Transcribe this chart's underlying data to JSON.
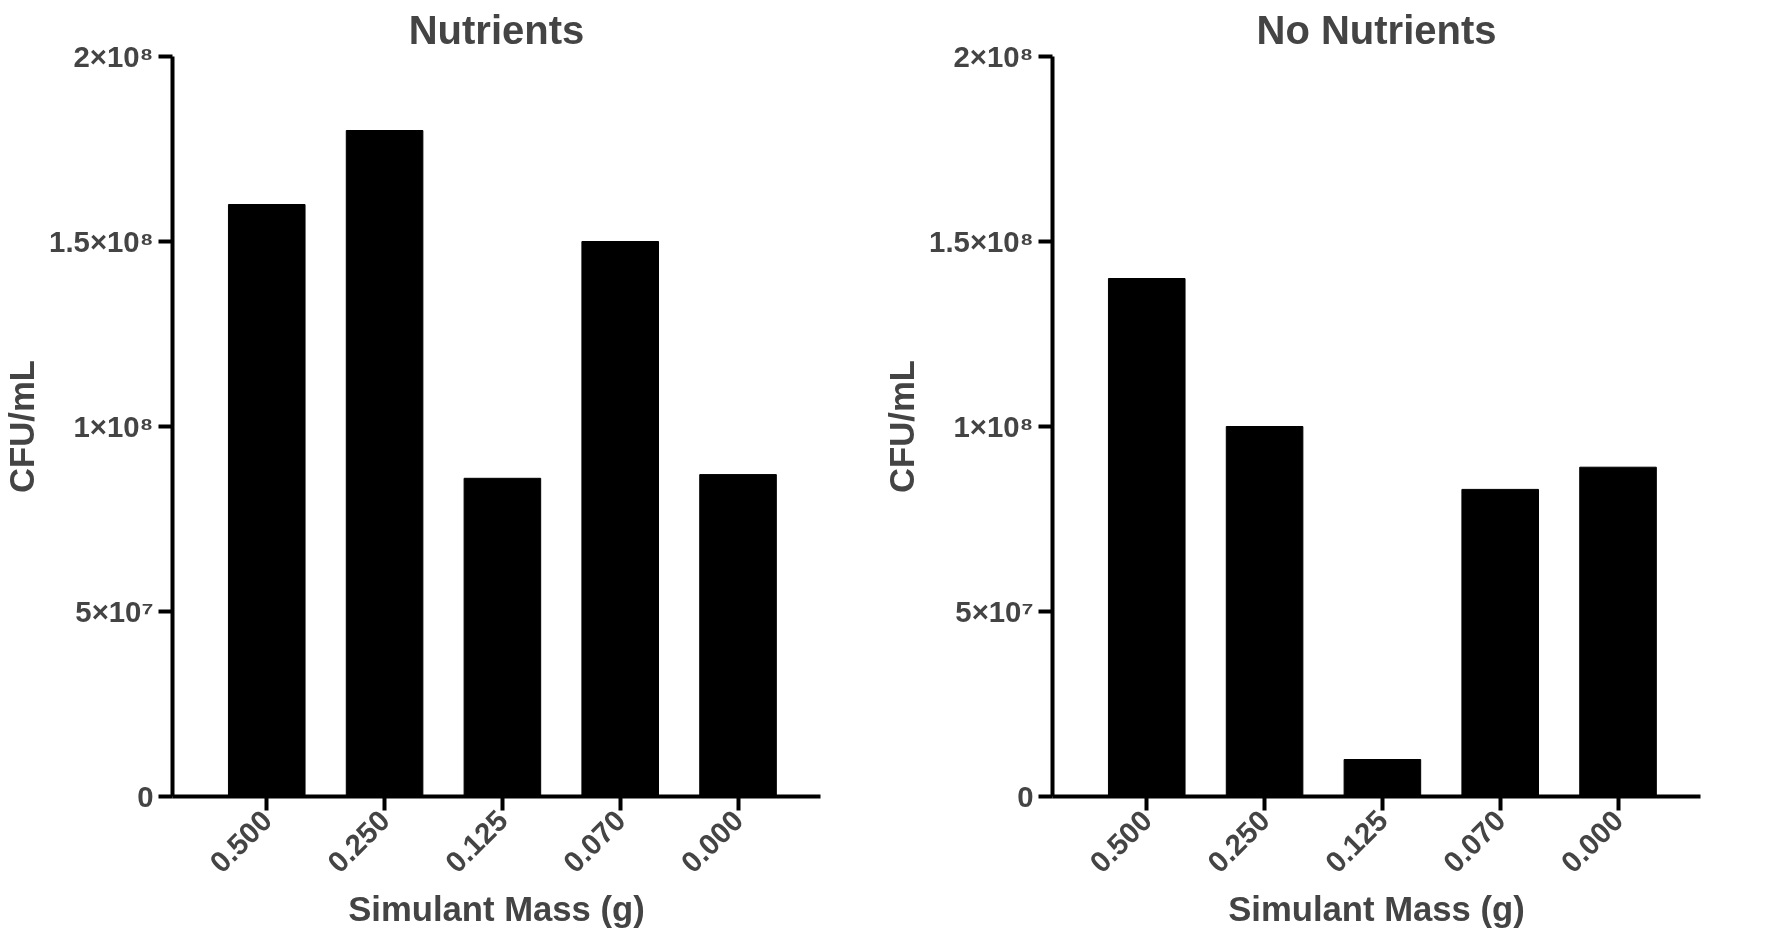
{
  "chart_data": [
    {
      "type": "bar",
      "title": "Nutrients",
      "xlabel": "Simulant Mass (g)",
      "ylabel": "CFU/mL",
      "categories": [
        "0.500",
        "0.250",
        "0.125",
        "0.070",
        "0.000"
      ],
      "series": [
        {
          "color": "#000000",
          "values": [
            160000000,
            180000000,
            86000000,
            150000000,
            87000000
          ]
        }
      ],
      "ylim": [
        0,
        200000000
      ],
      "yticks": [
        0,
        {
          "value": 50000000,
          "label": "5×10⁷"
        },
        {
          "value": 100000000,
          "label": "1×10⁸"
        },
        {
          "value": 150000000,
          "label": "1.5×10⁸"
        },
        {
          "value": 200000000,
          "label": "2×10⁸"
        }
      ]
    },
    {
      "type": "bar",
      "title": "No Nutrients",
      "xlabel": "Simulant Mass (g)",
      "ylabel": "CFU/mL",
      "categories": [
        "0.500",
        "0.250",
        "0.125",
        "0.070",
        "0.000"
      ],
      "series": [
        {
          "color": "#000000",
          "values": [
            140000000,
            100000000,
            10000000,
            83000000,
            89000000
          ]
        }
      ],
      "ylim": [
        0,
        200000000
      ],
      "yticks": [
        0,
        {
          "value": 50000000,
          "label": "5×10⁷"
        },
        {
          "value": 100000000,
          "label": "1×10⁸"
        },
        {
          "value": 150000000,
          "label": "1.5×10⁸"
        },
        {
          "value": 200000000,
          "label": "2×10⁸"
        }
      ]
    }
  ]
}
